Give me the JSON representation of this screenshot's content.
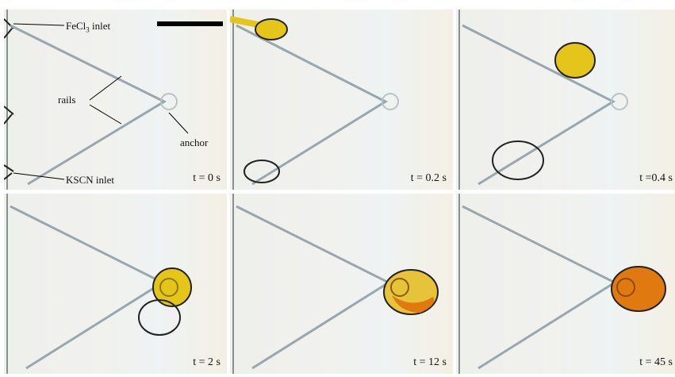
{
  "figure": {
    "panels": [
      {
        "id": "p1",
        "time": "t = 0 s",
        "yellow": "none",
        "clear": "none"
      },
      {
        "id": "p2",
        "time": "t = 0.2 s",
        "yellow": "inlet-top",
        "clear": "inlet-bottom"
      },
      {
        "id": "p3",
        "time": "t =0.4 s",
        "yellow": "mid-top",
        "clear": "mid-bottom"
      },
      {
        "id": "p4",
        "time": "t = 2 s",
        "yellow": "anchor-yellow",
        "clear": "anchor-clear"
      },
      {
        "id": "p5",
        "time": "t = 12 s",
        "yellow": "merged-partial",
        "clear": "none"
      },
      {
        "id": "p6",
        "time": "t = 45 s",
        "yellow": "merged-full",
        "clear": "none"
      }
    ],
    "annotations": {
      "fecl3_label_main": "FeCl",
      "fecl3_sub": "3",
      "fecl3_label_tail": " inlet",
      "rails": "rails",
      "anchor": "anchor",
      "kscn_inlet": "KSCN inlet"
    },
    "colors": {
      "yellow_droplet": "#e6c51a",
      "orange_droplet": "#e07a10",
      "rail": "#9aa6ad",
      "scale_bar": "#000000"
    }
  }
}
